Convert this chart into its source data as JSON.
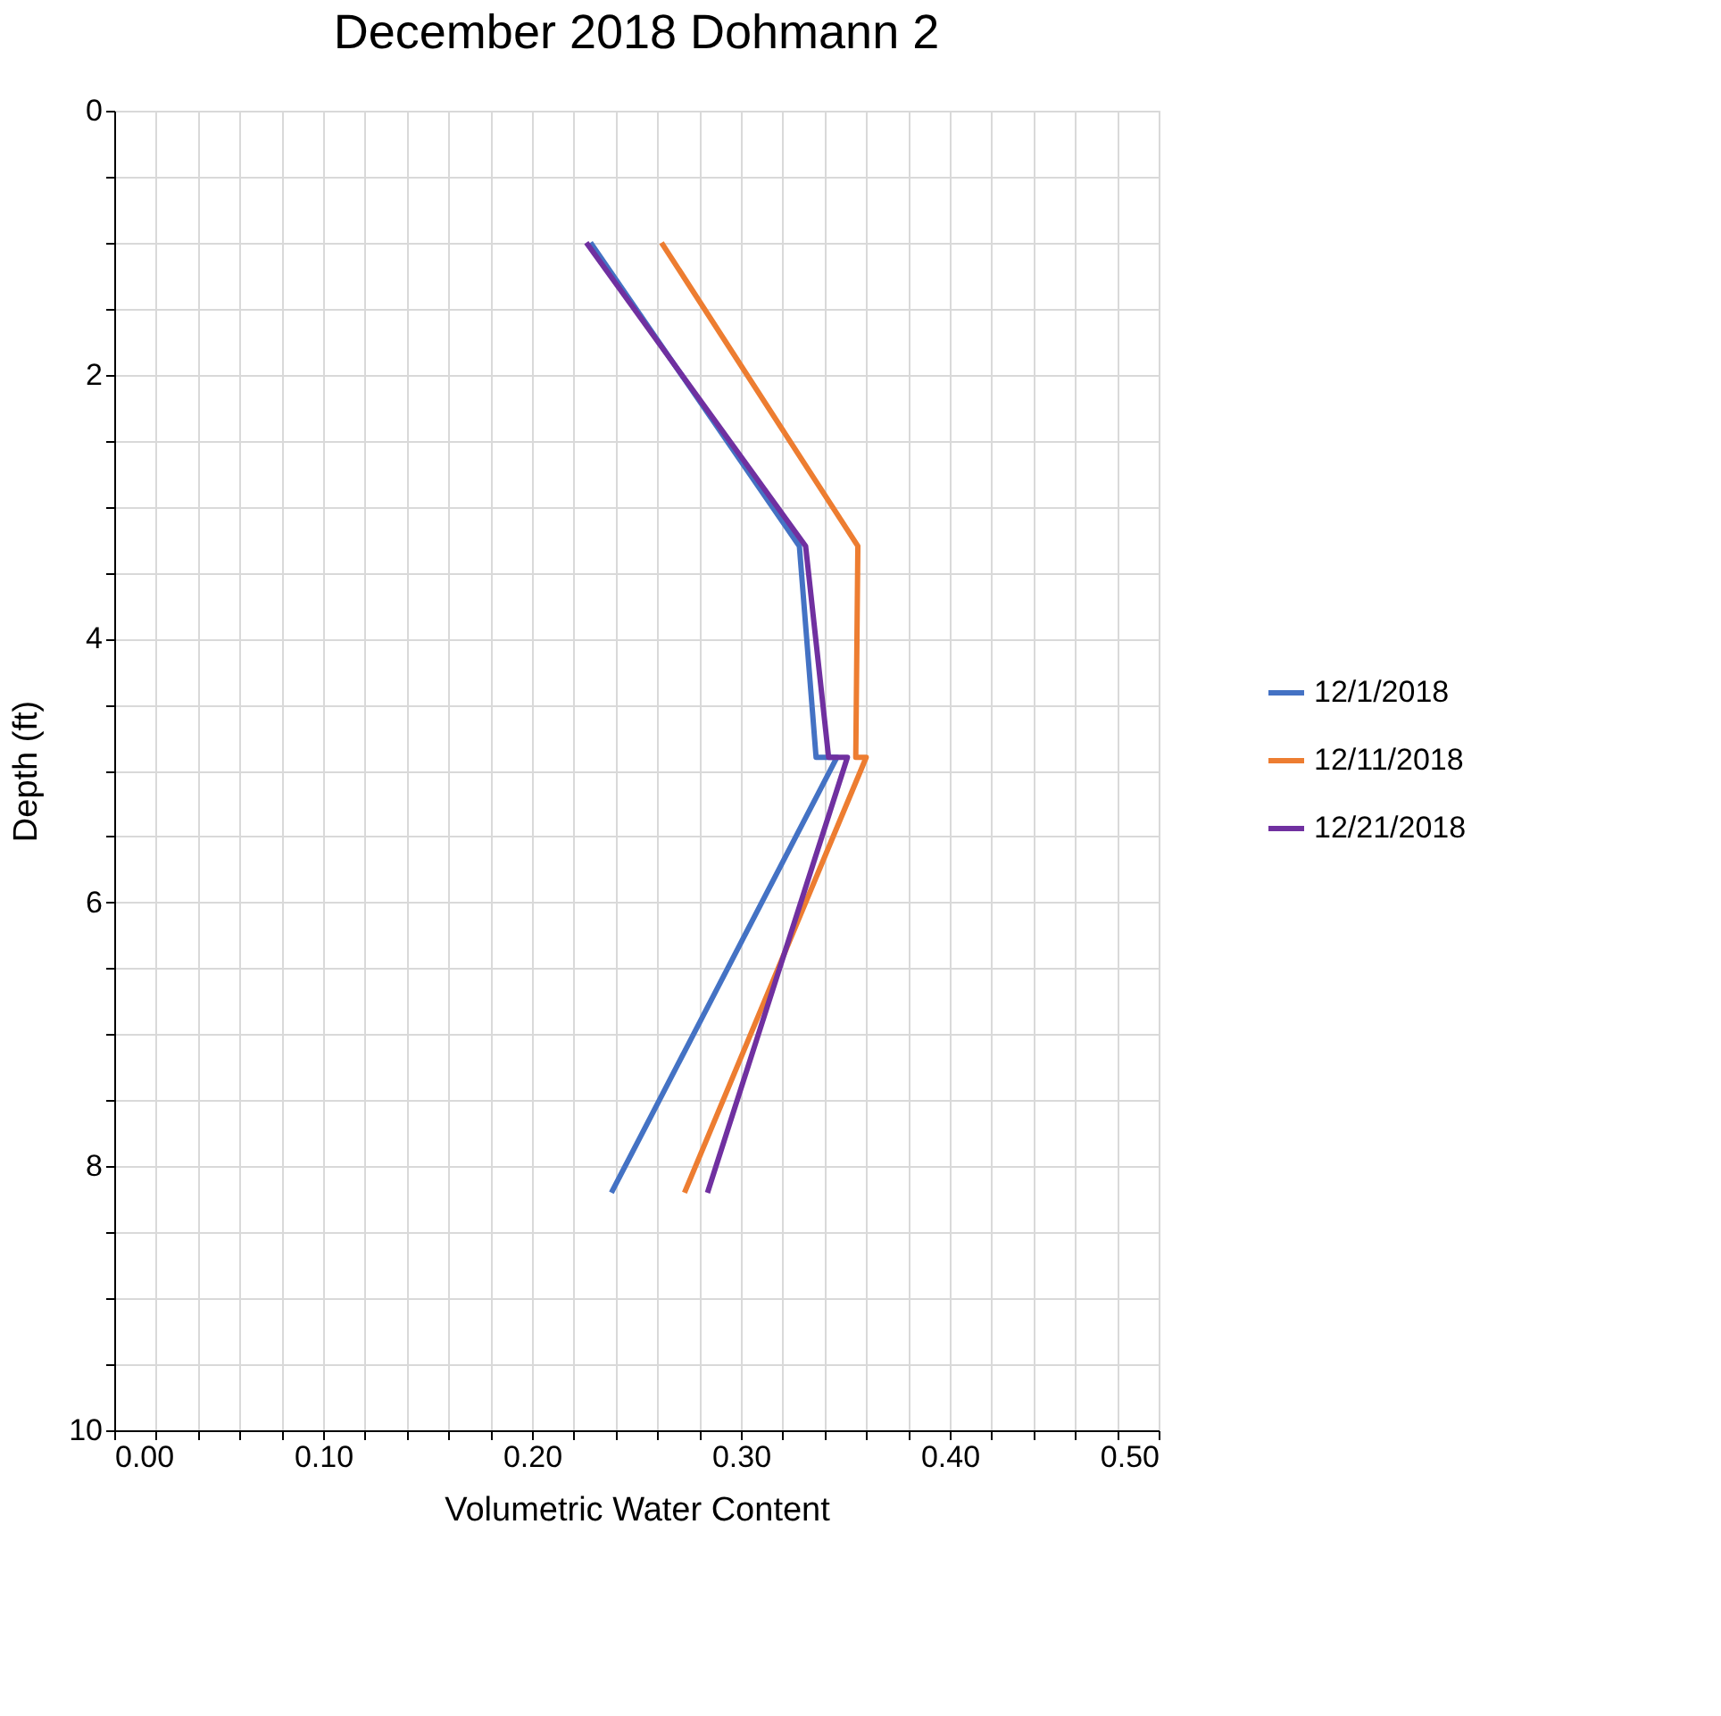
{
  "chart_data": {
    "type": "line",
    "title": "December 2018 Dohmann 2",
    "xlabel": "Volumetric Water Content",
    "ylabel": "Depth (ft)",
    "xlim": [
      0,
      0.5
    ],
    "ylim": [
      10,
      0
    ],
    "xticks": [
      {
        "value": 0,
        "label": "0.00"
      },
      {
        "value": 0.02,
        "label": null
      },
      {
        "value": 0.04,
        "label": null
      },
      {
        "value": 0.06,
        "label": null
      },
      {
        "value": 0.08,
        "label": null
      },
      {
        "value": 0.1,
        "label": "0.10"
      },
      {
        "value": 0.12,
        "label": null
      },
      {
        "value": 0.14,
        "label": null
      },
      {
        "value": 0.16,
        "label": null
      },
      {
        "value": 0.18,
        "label": null
      },
      {
        "value": 0.2,
        "label": "0.20"
      },
      {
        "value": 0.22,
        "label": null
      },
      {
        "value": 0.24,
        "label": null
      },
      {
        "value": 0.26,
        "label": null
      },
      {
        "value": 0.28,
        "label": null
      },
      {
        "value": 0.3,
        "label": "0.30"
      },
      {
        "value": 0.32,
        "label": null
      },
      {
        "value": 0.34,
        "label": null
      },
      {
        "value": 0.36,
        "label": null
      },
      {
        "value": 0.38,
        "label": null
      },
      {
        "value": 0.4,
        "label": "0.40"
      },
      {
        "value": 0.42,
        "label": null
      },
      {
        "value": 0.44,
        "label": null
      },
      {
        "value": 0.46,
        "label": null
      },
      {
        "value": 0.48,
        "label": null
      },
      {
        "value": 0.5,
        "label": "0.50"
      }
    ],
    "yticks": [
      0,
      {
        "value": 0.5,
        "label": null
      },
      {
        "value": 1,
        "label": null
      },
      {
        "value": 1.5,
        "label": null
      },
      2,
      {
        "value": 2.5,
        "label": null
      },
      {
        "value": 3,
        "label": null
      },
      {
        "value": 3.5,
        "label": null
      },
      4,
      {
        "value": 4.5,
        "label": null
      },
      {
        "value": 5,
        "label": null
      },
      {
        "value": 5.5,
        "label": null
      },
      6,
      {
        "value": 6.5,
        "label": null
      },
      {
        "value": 7,
        "label": null
      },
      {
        "value": 7.5,
        "label": null
      },
      8,
      {
        "value": 8.5,
        "label": null
      },
      {
        "value": 9,
        "label": null
      },
      {
        "value": 9.5,
        "label": null
      },
      10
    ],
    "grid": true,
    "legend": "right",
    "marker": "none",
    "line_style": "solid",
    "series": [
      {
        "name": "12/1/2018",
        "color": "#4472c4",
        "x": [
          0.228,
          0.328,
          0.336,
          0.346,
          0.238
        ],
        "values": [
          1.0,
          3.3,
          4.9,
          4.9,
          8.2
        ]
      },
      {
        "name": "12/11/2018",
        "color": "#ed7d31",
        "x": [
          0.262,
          0.356,
          0.355,
          0.36,
          0.273
        ],
        "values": [
          1.0,
          3.3,
          4.9,
          4.9,
          8.2
        ]
      },
      {
        "name": "12/21/2018",
        "color": "#7030a0",
        "x": [
          0.226,
          0.331,
          0.342,
          0.351,
          0.284
        ],
        "values": [
          1.0,
          3.3,
          4.9,
          4.9,
          8.2
        ]
      }
    ]
  }
}
